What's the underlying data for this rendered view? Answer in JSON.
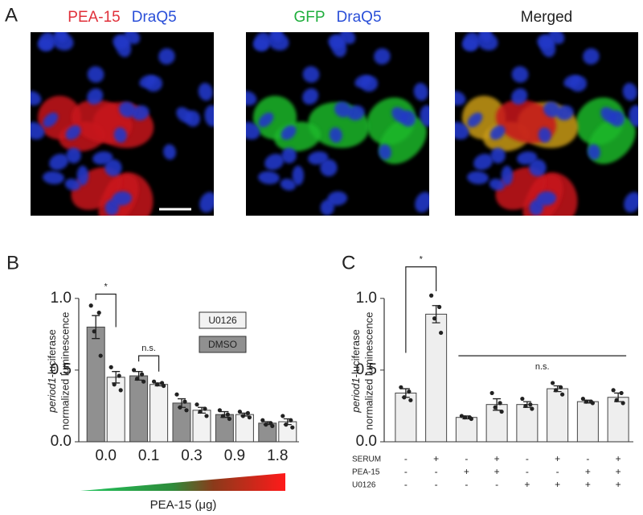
{
  "panel_a": {
    "label": "A",
    "images": [
      {
        "title_parts": [
          "PEA-15",
          "DraQ5"
        ]
      },
      {
        "title_parts": [
          "GFP",
          "DraQ5"
        ]
      },
      {
        "title_parts": [
          "Merged"
        ]
      }
    ]
  },
  "chart_data": [
    {
      "type": "bar",
      "panel": "B",
      "y_label_italic": "period1",
      "y_label": "-luciferase",
      "y_label2": "normalized luminescence",
      "x_label": "PEA-15 (μg)",
      "categories": [
        "0.0",
        "0.1",
        "0.3",
        "0.9",
        "1.8"
      ],
      "series": [
        {
          "name": "DMSO",
          "color": "#909090",
          "values": [
            0.8,
            0.46,
            0.27,
            0.19,
            0.13
          ],
          "errors": [
            0.08,
            0.03,
            0.03,
            0.02,
            0.01
          ],
          "points": [
            [
              0.95,
              0.9,
              0.77,
              0.6
            ],
            [
              0.5,
              0.47,
              0.44,
              0.42
            ],
            [
              0.33,
              0.28,
              0.24,
              0.22
            ],
            [
              0.22,
              0.19,
              0.18,
              0.16
            ],
            [
              0.15,
              0.13,
              0.12,
              0.11
            ]
          ]
        },
        {
          "name": "U0126",
          "color": "#f2f2f2",
          "values": [
            0.45,
            0.4,
            0.22,
            0.19,
            0.14
          ],
          "errors": [
            0.04,
            0.01,
            0.02,
            0.01,
            0.02
          ],
          "points": [
            [
              0.52,
              0.46,
              0.4,
              0.36
            ],
            [
              0.42,
              0.41,
              0.4,
              0.39
            ],
            [
              0.26,
              0.23,
              0.21,
              0.18
            ],
            [
              0.21,
              0.2,
              0.18,
              0.17
            ],
            [
              0.18,
              0.15,
              0.12,
              0.1
            ]
          ]
        }
      ],
      "annotations": [
        "*",
        "n.s."
      ],
      "ylim": [
        0,
        1.1
      ],
      "yticks": [
        {
          "value": 0,
          "label": "0.0"
        },
        0.5,
        {
          "value": 1,
          "label": "1.0"
        }
      ]
    },
    {
      "type": "bar",
      "panel": "C",
      "y_label_italic": "period1",
      "y_label": "-luciferase",
      "y_label2": "normalized luminescence",
      "series": [
        {
          "color": "#eeeeee",
          "values": [
            0.34,
            0.89,
            0.17,
            0.26,
            0.26,
            0.37,
            0.28,
            0.31
          ],
          "errors": [
            0.03,
            0.06,
            0.01,
            0.04,
            0.02,
            0.02,
            0.01,
            0.03
          ],
          "points": [
            [
              0.38,
              0.35,
              0.31,
              0.29
            ],
            [
              1.02,
              0.94,
              0.86,
              0.76
            ],
            [
              0.18,
              0.17,
              0.17,
              0.16
            ],
            [
              0.34,
              0.27,
              0.24,
              0.21
            ],
            [
              0.3,
              0.26,
              0.25,
              0.23
            ],
            [
              0.41,
              0.38,
              0.36,
              0.33
            ],
            [
              0.3,
              0.28,
              0.28,
              0.27
            ],
            [
              0.36,
              0.34,
              0.29,
              0.27
            ]
          ]
        }
      ],
      "treatments": [
        {
          "name": "SERUM",
          "signs": [
            "-",
            "+",
            "-",
            "+",
            "-",
            "+",
            "-",
            "+"
          ]
        },
        {
          "name": "PEA-15",
          "signs": [
            "-",
            "-",
            "+",
            "+",
            "-",
            "-",
            "+",
            "+"
          ]
        },
        {
          "name": "U0126",
          "signs": [
            "-",
            "-",
            "-",
            "-",
            "+",
            "+",
            "+",
            "+"
          ]
        }
      ],
      "annotations": [
        "*",
        "n.s."
      ],
      "ylim": [
        0,
        1.1
      ],
      "yticks": [
        {
          "value": 0,
          "label": "0.0"
        },
        0.5,
        {
          "value": 1,
          "label": "1.0"
        }
      ]
    }
  ]
}
